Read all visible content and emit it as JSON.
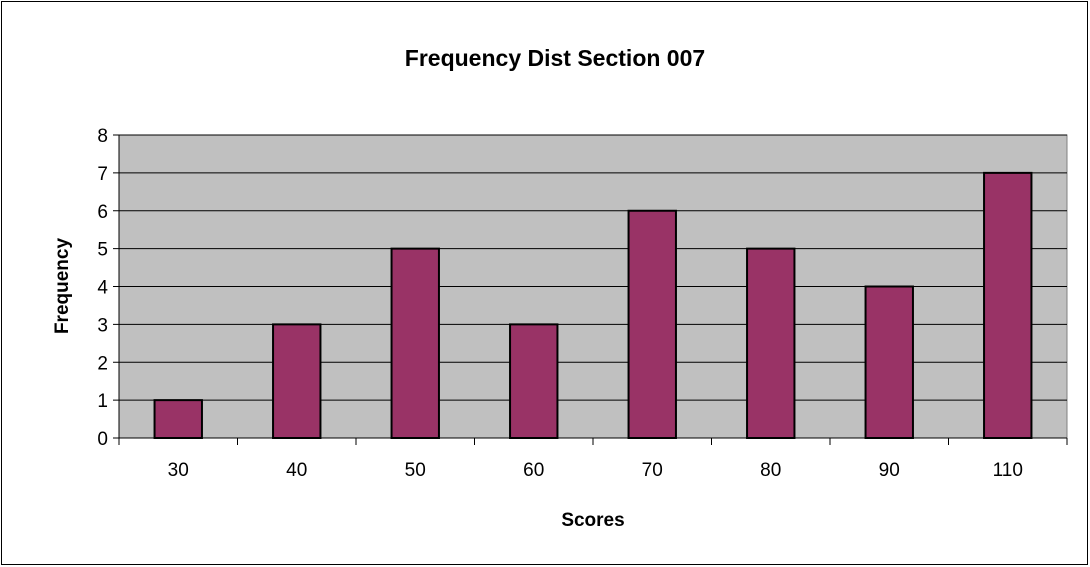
{
  "chart_data": {
    "type": "bar",
    "title": "Frequency Dist Section 007",
    "xlabel": "Scores",
    "ylabel": "Frequency",
    "categories": [
      "30",
      "40",
      "50",
      "60",
      "70",
      "80",
      "90",
      "110"
    ],
    "values": [
      1,
      3,
      5,
      3,
      6,
      5,
      4,
      7
    ],
    "ylim": [
      0,
      8
    ],
    "yticks": [
      "0",
      "1",
      "2",
      "3",
      "4",
      "5",
      "6",
      "7",
      "8"
    ],
    "grid": true,
    "legend": "none",
    "colors": {
      "bar_fill": "#993366",
      "bar_stroke": "#000000",
      "plot_background": "#c0c0c0",
      "gridline": "#000000"
    }
  }
}
